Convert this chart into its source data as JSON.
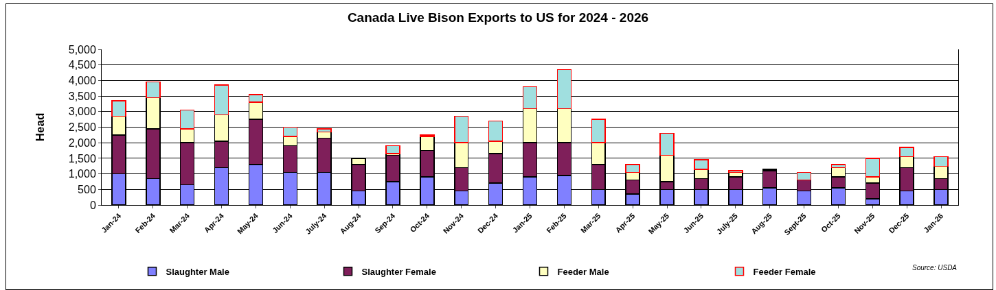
{
  "chart_data": {
    "type": "bar",
    "title": "Canada Live Bison Exports to US for 2024 - 2026",
    "ylabel": "Head",
    "stacked": true,
    "categories": [
      "Jan-24",
      "Feb-24",
      "Mar-24",
      "Apr-24",
      "May-24",
      "Jun-24",
      "July-24",
      "Aug-24",
      "Sep-24",
      "Oct-24",
      "Nov-24",
      "Dec-24",
      "Jan-25",
      "Feb-25",
      "Mar-25",
      "Apr-25",
      "May-25",
      "Jun-25",
      "July-25",
      "Aug-25",
      "Sept-25",
      "Oct-25",
      "Nov-25",
      "Dec-25",
      "Jan-26"
    ],
    "series": [
      {
        "name": "Slaughter Male",
        "color": "#8080ff",
        "values": [
          1000,
          850,
          650,
          1200,
          1300,
          1050,
          1050,
          450,
          750,
          900,
          450,
          700,
          900,
          950,
          500,
          350,
          500,
          500,
          500,
          550,
          450,
          550,
          200,
          450,
          500
        ]
      },
      {
        "name": "Slaughter Female",
        "color": "#7f1f5a",
        "values": [
          1250,
          1600,
          1350,
          850,
          1450,
          850,
          1100,
          850,
          850,
          850,
          750,
          950,
          1100,
          1050,
          800,
          450,
          250,
          350,
          400,
          550,
          350,
          350,
          500,
          750,
          350
        ]
      },
      {
        "name": "Feeder Male",
        "color": "#ffffc0",
        "values": [
          600,
          1000,
          450,
          850,
          550,
          300,
          200,
          200,
          50,
          450,
          800,
          400,
          1100,
          1100,
          700,
          250,
          850,
          300,
          150,
          50,
          null,
          300,
          200,
          350,
          400
        ]
      },
      {
        "name": "Feeder Female",
        "color": "#a0dfdf",
        "values": [
          500,
          500,
          600,
          950,
          250,
          300,
          100,
          null,
          250,
          50,
          850,
          650,
          700,
          1250,
          750,
          250,
          700,
          300,
          50,
          null,
          250,
          100,
          600,
          300,
          300
        ]
      }
    ],
    "ylim": [
      0,
      5000
    ],
    "yticks": [
      {
        "value": 0,
        "label": "0"
      },
      {
        "value": 500,
        "label": "500"
      },
      {
        "value": 1000,
        "label": "1,000"
      },
      {
        "value": 1500,
        "label": "1,500"
      },
      {
        "value": 2000,
        "label": "2,000"
      },
      {
        "value": 2500,
        "label": "2,500"
      },
      {
        "value": 3000,
        "label": "3,000"
      },
      {
        "value": 3500,
        "label": "3,500"
      },
      {
        "value": 4000,
        "label": "4,000"
      },
      {
        "value": 4500,
        "label": "4,500"
      },
      {
        "value": 5000,
        "label": "5,000"
      }
    ],
    "grid": "y",
    "legend": "bottom",
    "annotations": [
      "Source: USDA"
    ]
  }
}
